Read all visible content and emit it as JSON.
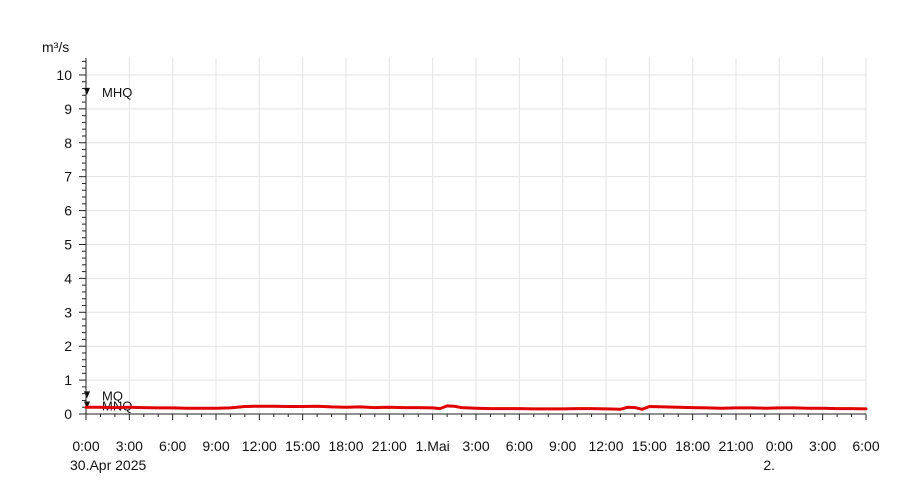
{
  "chart_data": {
    "type": "line",
    "ylabel": "m³/s",
    "ylim": [
      0,
      10.5
    ],
    "yticks": [
      0,
      1,
      2,
      3,
      4,
      5,
      6,
      7,
      8,
      9,
      10
    ],
    "xlim_hours": [
      0,
      54
    ],
    "x_tick_labels": [
      "0:00",
      "3:00",
      "6:00",
      "9:00",
      "12:00",
      "15:00",
      "18:00",
      "21:00",
      "1.Mai",
      "3:00",
      "6:00",
      "9:00",
      "12:00",
      "15:00",
      "18:00",
      "21:00",
      "0:00",
      "3:00",
      "6:00"
    ],
    "x_date_labels": [
      {
        "text": "30.Apr 2025",
        "at_hour": 0
      },
      {
        "text": "2.",
        "at_hour": 48
      }
    ],
    "grid": true,
    "reference_lines": [
      {
        "name": "MHQ",
        "value": 9.5
      },
      {
        "name": "MQ",
        "value": 0.55
      },
      {
        "name": "MNQ",
        "value": 0.25
      }
    ],
    "series": [
      {
        "color": "#e00000",
        "x_hours": [
          0,
          1,
          2,
          3,
          4,
          5,
          6,
          7,
          8,
          9,
          10,
          11,
          12,
          13,
          14,
          15,
          16,
          17,
          18,
          19,
          20,
          21,
          22,
          23,
          24,
          24.5,
          25,
          25.5,
          26,
          27,
          28,
          29,
          30,
          31,
          32,
          33,
          34,
          35,
          36,
          37,
          37.5,
          38,
          38.5,
          39,
          40,
          41,
          42,
          43,
          44,
          45,
          46,
          47,
          48,
          49,
          50,
          51,
          52,
          53,
          54
        ],
        "values": [
          0.2,
          0.2,
          0.19,
          0.2,
          0.19,
          0.18,
          0.18,
          0.17,
          0.17,
          0.17,
          0.18,
          0.22,
          0.23,
          0.23,
          0.22,
          0.22,
          0.23,
          0.21,
          0.2,
          0.21,
          0.19,
          0.2,
          0.19,
          0.19,
          0.18,
          0.16,
          0.24,
          0.23,
          0.19,
          0.17,
          0.16,
          0.16,
          0.16,
          0.15,
          0.15,
          0.15,
          0.16,
          0.16,
          0.15,
          0.14,
          0.2,
          0.19,
          0.14,
          0.22,
          0.21,
          0.2,
          0.19,
          0.18,
          0.17,
          0.18,
          0.18,
          0.17,
          0.18,
          0.18,
          0.17,
          0.17,
          0.16,
          0.16,
          0.15
        ]
      }
    ]
  }
}
